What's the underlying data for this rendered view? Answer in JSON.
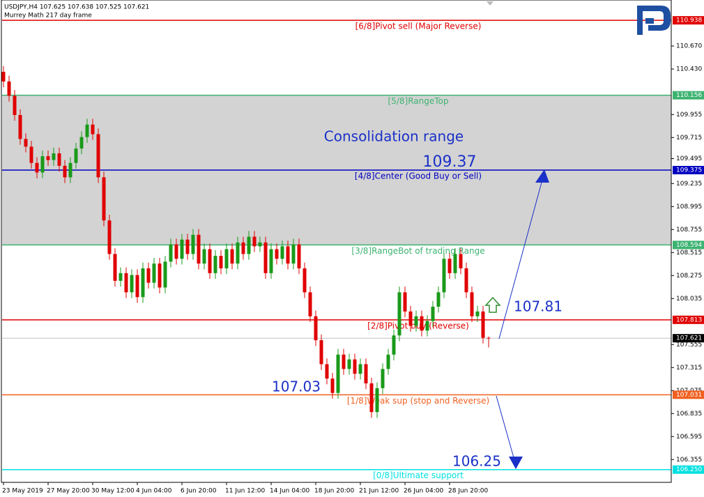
{
  "chart_data": {
    "type": "candlestick",
    "header": [
      "USDJPY,H4  107.625 107.638 107.525 107.621",
      "Murrey Math 217 day frame"
    ],
    "categories": [
      "23 May 2019",
      null,
      null,
      null,
      null,
      null,
      null,
      null,
      "27 May 20:00",
      null,
      null,
      null,
      null,
      null,
      null,
      null,
      "30 May 12:00",
      null,
      null,
      null,
      null,
      null,
      null,
      null,
      "4 Jun 04:00",
      null,
      null,
      null,
      null,
      null,
      null,
      null,
      "6 Jun 20:00",
      null,
      null,
      null,
      null,
      null,
      null,
      null,
      "11 Jun 12:00",
      null,
      null,
      null,
      null,
      null,
      null,
      null,
      "14 Jun 04:00",
      null,
      null,
      null,
      null,
      null,
      null,
      null,
      "18 Jun 20:00",
      null,
      null,
      null,
      null,
      null,
      null,
      null,
      "21 Jun 12:00",
      null,
      null,
      null,
      null,
      null,
      null,
      null,
      "26 Jun 04:00",
      null,
      null,
      null,
      null,
      null,
      null,
      null,
      "28 Jun 20:00",
      null,
      null,
      null,
      null,
      null,
      null,
      null
    ],
    "ohlc": [
      [
        110.4,
        110.46,
        110.24,
        110.3
      ],
      [
        110.3,
        110.36,
        110.09,
        110.15
      ],
      [
        110.15,
        110.21,
        109.89,
        109.95
      ],
      [
        109.95,
        110.01,
        109.64,
        109.7
      ],
      [
        109.7,
        109.76,
        109.56,
        109.62
      ],
      [
        109.62,
        109.68,
        109.39,
        109.45
      ],
      [
        109.45,
        109.51,
        109.29,
        109.35
      ],
      [
        109.35,
        109.58,
        109.29,
        109.52
      ],
      [
        109.52,
        109.58,
        109.42,
        109.48
      ],
      [
        109.48,
        109.61,
        109.42,
        109.55
      ],
      [
        109.55,
        109.61,
        109.36,
        109.42
      ],
      [
        109.42,
        109.48,
        109.24,
        109.3
      ],
      [
        109.3,
        109.51,
        109.24,
        109.45
      ],
      [
        109.45,
        109.66,
        109.39,
        109.6
      ],
      [
        109.6,
        109.78,
        109.54,
        109.72
      ],
      [
        109.72,
        109.91,
        109.66,
        109.85
      ],
      [
        109.85,
        109.91,
        109.69,
        109.75
      ],
      [
        109.75,
        109.81,
        109.24,
        109.3
      ],
      [
        109.3,
        109.36,
        108.79,
        108.85
      ],
      [
        108.85,
        108.91,
        108.44,
        108.5
      ],
      [
        108.5,
        108.56,
        108.16,
        108.22
      ],
      [
        108.22,
        108.36,
        108.16,
        108.3
      ],
      [
        108.3,
        108.36,
        108.04,
        108.1
      ],
      [
        108.1,
        108.34,
        108.04,
        108.28
      ],
      [
        108.28,
        108.34,
        107.99,
        108.05
      ],
      [
        108.05,
        108.41,
        107.99,
        108.35
      ],
      [
        108.35,
        108.41,
        108.14,
        108.2
      ],
      [
        108.2,
        108.46,
        108.14,
        108.4
      ],
      [
        108.4,
        108.46,
        108.09,
        108.15
      ],
      [
        108.15,
        108.48,
        108.09,
        108.42
      ],
      [
        108.42,
        108.66,
        108.36,
        108.6
      ],
      [
        108.6,
        108.66,
        108.39,
        108.45
      ],
      [
        108.45,
        108.71,
        108.39,
        108.65
      ],
      [
        108.65,
        108.71,
        108.44,
        108.5
      ],
      [
        108.5,
        108.76,
        108.44,
        108.7
      ],
      [
        108.7,
        108.76,
        108.34,
        108.4
      ],
      [
        108.4,
        108.61,
        108.34,
        108.55
      ],
      [
        108.55,
        108.61,
        108.24,
        108.3
      ],
      [
        108.3,
        108.54,
        108.24,
        108.48
      ],
      [
        108.48,
        108.54,
        108.29,
        108.35
      ],
      [
        108.35,
        108.61,
        108.29,
        108.55
      ],
      [
        108.55,
        108.61,
        108.34,
        108.4
      ],
      [
        108.4,
        108.68,
        108.34,
        108.62
      ],
      [
        108.62,
        108.68,
        108.44,
        108.5
      ],
      [
        108.5,
        108.74,
        108.44,
        108.68
      ],
      [
        108.68,
        108.74,
        108.52,
        108.58
      ],
      [
        108.58,
        108.68,
        108.52,
        108.62
      ],
      [
        108.62,
        108.68,
        108.24,
        108.3
      ],
      [
        108.3,
        108.61,
        108.24,
        108.55
      ],
      [
        108.55,
        108.61,
        108.39,
        108.45
      ],
      [
        108.45,
        108.64,
        108.39,
        108.58
      ],
      [
        108.58,
        108.64,
        108.34,
        108.4
      ],
      [
        108.4,
        108.66,
        108.34,
        108.6
      ],
      [
        108.6,
        108.66,
        108.29,
        108.35
      ],
      [
        108.35,
        108.41,
        108.04,
        108.1
      ],
      [
        108.1,
        108.16,
        107.79,
        107.85
      ],
      [
        107.85,
        107.91,
        107.54,
        107.6
      ],
      [
        107.6,
        107.66,
        107.29,
        107.35
      ],
      [
        107.35,
        107.41,
        107.14,
        107.2
      ],
      [
        107.2,
        107.26,
        106.99,
        107.05
      ],
      [
        107.05,
        107.51,
        106.99,
        107.45
      ],
      [
        107.45,
        107.51,
        107.24,
        107.3
      ],
      [
        107.3,
        107.46,
        107.24,
        107.4
      ],
      [
        107.4,
        107.46,
        107.19,
        107.25
      ],
      [
        107.25,
        107.41,
        107.19,
        107.35
      ],
      [
        107.35,
        107.41,
        107.09,
        107.15
      ],
      [
        107.15,
        107.21,
        106.79,
        106.85
      ],
      [
        106.85,
        107.16,
        106.79,
        107.1
      ],
      [
        107.1,
        107.36,
        107.04,
        107.3
      ],
      [
        107.3,
        107.51,
        107.24,
        107.45
      ],
      [
        107.45,
        107.71,
        107.39,
        107.65
      ],
      [
        107.65,
        108.16,
        107.59,
        108.1
      ],
      [
        108.1,
        108.16,
        107.84,
        107.9
      ],
      [
        107.9,
        107.96,
        107.69,
        107.75
      ],
      [
        107.75,
        107.91,
        107.69,
        107.85
      ],
      [
        107.85,
        107.91,
        107.64,
        107.7
      ],
      [
        107.7,
        107.86,
        107.64,
        107.8
      ],
      [
        107.8,
        108.01,
        107.74,
        107.95
      ],
      [
        107.95,
        108.16,
        107.89,
        108.1
      ],
      [
        108.1,
        108.51,
        108.04,
        108.45
      ],
      [
        108.45,
        108.51,
        108.24,
        108.3
      ],
      [
        108.3,
        108.56,
        108.24,
        108.5
      ],
      [
        108.5,
        108.56,
        108.29,
        108.35
      ],
      [
        108.35,
        108.41,
        108.04,
        108.1
      ],
      [
        108.1,
        108.16,
        107.79,
        107.85
      ],
      [
        107.85,
        107.96,
        107.79,
        107.9
      ],
      [
        107.9,
        107.96,
        107.565,
        107.625
      ],
      [
        107.625,
        107.638,
        107.525,
        107.621
      ]
    ],
    "up_color": "#1a9a1a",
    "down_color": "#e00000",
    "ylim": [
      106.117,
      111.15
    ],
    "yticks": [
      {
        "value": 110.67,
        "label": "110.670"
      },
      {
        "value": 110.43,
        "label": "110.430"
      },
      109.955,
      109.715,
      109.495,
      109.235,
      108.995,
      108.755,
      108.515,
      108.275,
      108.035,
      107.555,
      107.315,
      107.075,
      106.835,
      106.595,
      106.355
    ],
    "levels": [
      {
        "name": "[6/8]Pivot sell (Major Reverse)",
        "value": 110.938,
        "color": "#e00000"
      },
      {
        "name": "[5/8]RangeTop",
        "value": 110.156,
        "color": "#3cb371"
      },
      {
        "name": "[4/8]Center (Good Buy or Sell)",
        "value": 109.375,
        "color": "#0000c0"
      },
      {
        "name": "[3/8]RangeBot of trading Range",
        "value": 108.594,
        "color": "#3cb371"
      },
      {
        "name": "[2/8]Pivot buy (Reverse)",
        "value": 107.813,
        "color": "#e00000"
      },
      {
        "name": "[1/8]Weak sup (stop and Reverse)",
        "value": 107.031,
        "color": "#f06020"
      },
      {
        "name": "[0/8]Ultimate support",
        "value": {
          "value": 106.25,
          "label": "106.250"
        },
        "color": "#00e0e0"
      }
    ],
    "last": 107.621,
    "annotations": [
      "Consolidation range",
      "109.37",
      "107.81",
      "107.03",
      "106.25"
    ]
  }
}
